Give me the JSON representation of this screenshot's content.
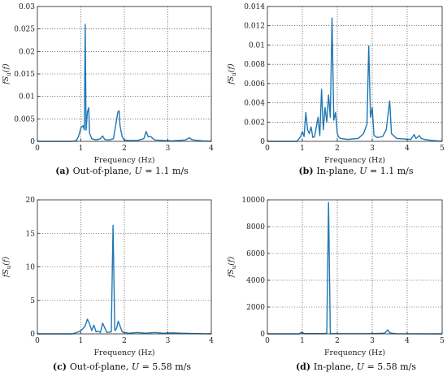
{
  "chart_data": [
    {
      "panel": "a",
      "type": "line",
      "xlabel": "Frequency (Hz)",
      "ylabel": "fS_u(f)",
      "xlim": [
        0,
        4
      ],
      "ylim": [
        0,
        0.03
      ],
      "xticks": [
        0,
        1,
        2,
        3,
        4
      ],
      "xtick_labels": [
        "0",
        "1",
        "2",
        "3",
        "4"
      ],
      "yticks": [
        0,
        0.005,
        0.01,
        0.015,
        0.02,
        0.025,
        0.03
      ],
      "ytick_labels": [
        "0",
        "0.005",
        "0.01",
        "0.015",
        "0.02",
        "0.025",
        "0.03"
      ],
      "grid": true,
      "caption_label": "(a)",
      "caption_text": "Out-of-plane,",
      "caption_var": "U",
      "caption_value": "= 1.1 m/s",
      "color": "#1f77b4",
      "series": [
        {
          "x": [
            0,
            0.8,
            0.9,
            0.95,
            1.0,
            1.05,
            1.08,
            1.1,
            1.12,
            1.15,
            1.18,
            1.2,
            1.25,
            1.35,
            1.45,
            1.5,
            1.55,
            1.65,
            1.75,
            1.85,
            1.88,
            1.9,
            1.95,
            2.0,
            2.1,
            2.3,
            2.45,
            2.5,
            2.55,
            2.6,
            2.7,
            2.9,
            3.1,
            3.4,
            3.5,
            3.55,
            3.6,
            3.7,
            3.8,
            4.0
          ],
          "y": [
            0,
            0,
            0.0002,
            0.0012,
            0.003,
            0.0035,
            0.0026,
            0.026,
            0.0025,
            0.0065,
            0.0075,
            0.0018,
            0.0006,
            0.0003,
            0.0006,
            0.0012,
            0.0004,
            0.0003,
            0.0006,
            0.0065,
            0.0068,
            0.0035,
            0.001,
            0.0003,
            0.0002,
            0.0002,
            0.0006,
            0.0022,
            0.001,
            0.0011,
            0.0003,
            0.0002,
            0.0001,
            0.0003,
            0.0008,
            0.0004,
            0.0003,
            0.0002,
            0.0001,
            0
          ]
        }
      ]
    },
    {
      "panel": "b",
      "type": "line",
      "xlabel": "Frequency (Hz)",
      "ylabel": "fS_u(f)",
      "xlim": [
        0,
        5
      ],
      "ylim": [
        0,
        0.014
      ],
      "xticks": [
        0,
        1,
        2,
        3,
        4,
        5
      ],
      "xtick_labels": [
        "0",
        "1",
        "2",
        "3",
        "4",
        "5"
      ],
      "yticks": [
        0,
        0.002,
        0.004,
        0.006,
        0.008,
        0.01,
        0.012,
        0.014
      ],
      "ytick_labels": [
        "0",
        "0.002",
        "0.004",
        "0.006",
        "0.008",
        "0.01",
        "0.012",
        "0.014"
      ],
      "grid": true,
      "caption_label": "(b)",
      "caption_text": "In-plane,",
      "caption_var": "U",
      "caption_value": "= 1.1 m/s",
      "color": "#1f77b4",
      "series": [
        {
          "x": [
            0,
            0.85,
            0.95,
            1.0,
            1.05,
            1.1,
            1.15,
            1.2,
            1.25,
            1.3,
            1.35,
            1.45,
            1.5,
            1.55,
            1.6,
            1.65,
            1.7,
            1.75,
            1.8,
            1.85,
            1.9,
            1.95,
            2.0,
            2.05,
            2.1,
            2.3,
            2.6,
            2.75,
            2.85,
            2.9,
            2.95,
            3.0,
            3.05,
            3.15,
            3.3,
            3.4,
            3.5,
            3.55,
            3.7,
            4.1,
            4.2,
            4.25,
            4.35,
            4.4,
            4.5,
            4.7,
            5.0
          ],
          "y": [
            0,
            0,
            0.0005,
            0.001,
            0.0005,
            0.003,
            0.0012,
            0.0008,
            0.0015,
            0.0004,
            0.0005,
            0.0025,
            0.0006,
            0.0054,
            0.0012,
            0.0035,
            0.002,
            0.0048,
            0.0025,
            0.0128,
            0.0022,
            0.003,
            0.0008,
            0.0004,
            0.0003,
            0.0002,
            0.0003,
            0.0008,
            0.0018,
            0.0099,
            0.0025,
            0.0035,
            0.0006,
            0.0004,
            0.0005,
            0.0012,
            0.0042,
            0.0008,
            0.0003,
            0.0002,
            0.0007,
            0.0003,
            0.0006,
            0.0003,
            0.0002,
            0.0001,
            0
          ]
        }
      ]
    },
    {
      "panel": "c",
      "type": "line",
      "xlabel": "Frequency (Hz)",
      "ylabel": "fS_u(f)",
      "xlim": [
        0,
        4
      ],
      "ylim": [
        0,
        20
      ],
      "xticks": [
        0,
        1,
        2,
        3,
        4
      ],
      "xtick_labels": [
        "0",
        "1",
        "2",
        "3",
        "4"
      ],
      "yticks": [
        0,
        5,
        10,
        15,
        20
      ],
      "ytick_labels": [
        "0",
        "5",
        "10",
        "15",
        "20"
      ],
      "grid": true,
      "caption_label": "(c)",
      "caption_text": "Out-of-plane,",
      "caption_var": "U",
      "caption_value": "= 5.58 m/s",
      "color": "#1f77b4",
      "series": [
        {
          "x": [
            0,
            0.8,
            0.95,
            1.0,
            1.05,
            1.1,
            1.15,
            1.2,
            1.25,
            1.3,
            1.35,
            1.4,
            1.45,
            1.5,
            1.6,
            1.7,
            1.74,
            1.78,
            1.82,
            1.86,
            1.9,
            1.95,
            2.0,
            2.1,
            2.3,
            2.5,
            2.7,
            2.9,
            3.1,
            3.3,
            3.6,
            4.0
          ],
          "y": [
            0,
            0,
            0.3,
            0.5,
            0.8,
            1.2,
            2.2,
            1.5,
            0.5,
            1.3,
            0.3,
            0.4,
            0.2,
            1.6,
            0.2,
            0.3,
            16.2,
            0.5,
            0.8,
            1.9,
            1.2,
            0.3,
            0.2,
            0.1,
            0.2,
            0.1,
            0.2,
            0.1,
            0.15,
            0.1,
            0.05,
            0
          ]
        }
      ]
    },
    {
      "panel": "d",
      "type": "line",
      "xlabel": "Frequency (Hz)",
      "ylabel": "fS_u(f)",
      "xlim": [
        0,
        5
      ],
      "ylim": [
        0,
        10000
      ],
      "xticks": [
        0,
        1,
        2,
        3,
        4,
        5
      ],
      "xtick_labels": [
        "0",
        "1",
        "2",
        "3",
        "4",
        "5"
      ],
      "yticks": [
        0,
        2000,
        4000,
        6000,
        8000,
        10000
      ],
      "ytick_labels": [
        "0",
        "2000",
        "4000",
        "6000",
        "8000",
        "10000"
      ],
      "grid": true,
      "caption_label": "(d)",
      "caption_text": "In-plane,",
      "caption_var": "U",
      "caption_value": "= 5.58 m/s",
      "color": "#1f77b4",
      "series": [
        {
          "x": [
            0,
            0.9,
            0.95,
            1.0,
            1.05,
            1.6,
            1.7,
            1.75,
            1.8,
            1.85,
            2.0,
            3.0,
            3.35,
            3.45,
            3.5,
            3.6,
            3.7,
            4.0,
            5.0
          ],
          "y": [
            0,
            0,
            80,
            120,
            20,
            20,
            40,
            9800,
            60,
            20,
            10,
            20,
            50,
            300,
            80,
            30,
            10,
            5,
            0
          ]
        }
      ]
    }
  ]
}
